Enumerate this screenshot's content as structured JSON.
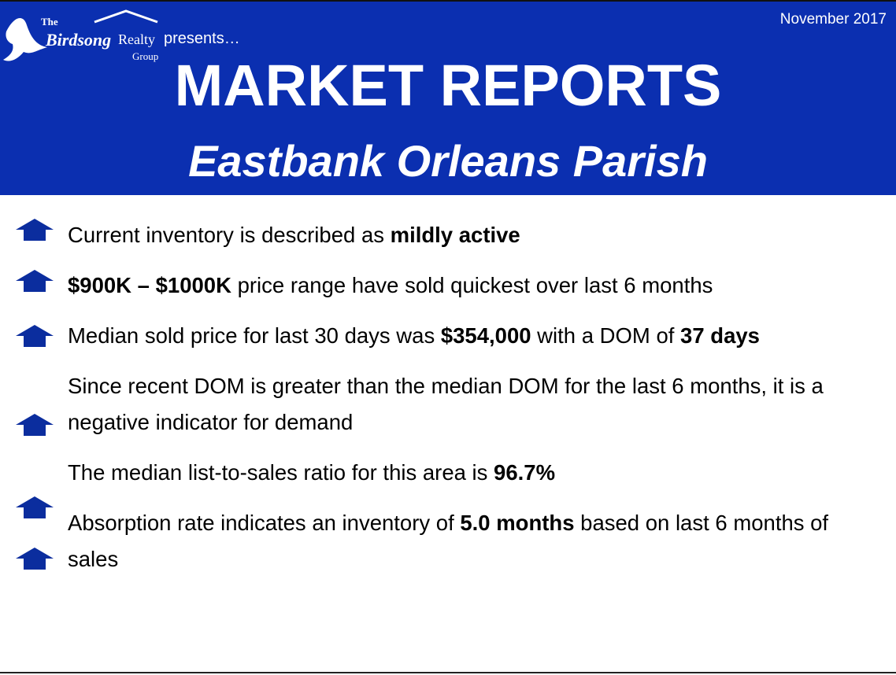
{
  "header": {
    "logo": {
      "the": "The",
      "birdsong": "Birdsong",
      "realty": "Realty",
      "group": "Group"
    },
    "presents": "presents…",
    "date": "November 2017",
    "title": "MARKET REPORTS",
    "subtitle": "Eastbank Orleans Parish"
  },
  "bullets": [
    {
      "segments": [
        {
          "text": "Current inventory is described as ",
          "bold": false
        },
        {
          "text": "mildly active",
          "bold": true
        }
      ]
    },
    {
      "segments": [
        {
          "text": "$900K – $1000K",
          "bold": true
        },
        {
          "text": " price range have sold quickest over last 6 months",
          "bold": false
        }
      ]
    },
    {
      "segments": [
        {
          "text": "Median sold price for last 30 days was ",
          "bold": false
        },
        {
          "text": "$354,000",
          "bold": true
        },
        {
          "text": " with a DOM of ",
          "bold": false
        },
        {
          "text": "37 days",
          "bold": true
        }
      ]
    },
    {
      "segments": [
        {
          "text": "Since recent DOM is greater than the median DOM for the last 6 months, it is a negative indicator for demand",
          "bold": false
        }
      ]
    },
    {
      "segments": [
        {
          "text": "The median list-to-sales ratio for this area is ",
          "bold": false
        },
        {
          "text": "96.7%",
          "bold": true
        }
      ]
    },
    {
      "segments": [
        {
          "text": "Absorption rate indicates an inventory of ",
          "bold": false
        },
        {
          "text": "5.0 months",
          "bold": true
        },
        {
          "text": " based on last 6 months of sales",
          "bold": false
        }
      ]
    }
  ]
}
